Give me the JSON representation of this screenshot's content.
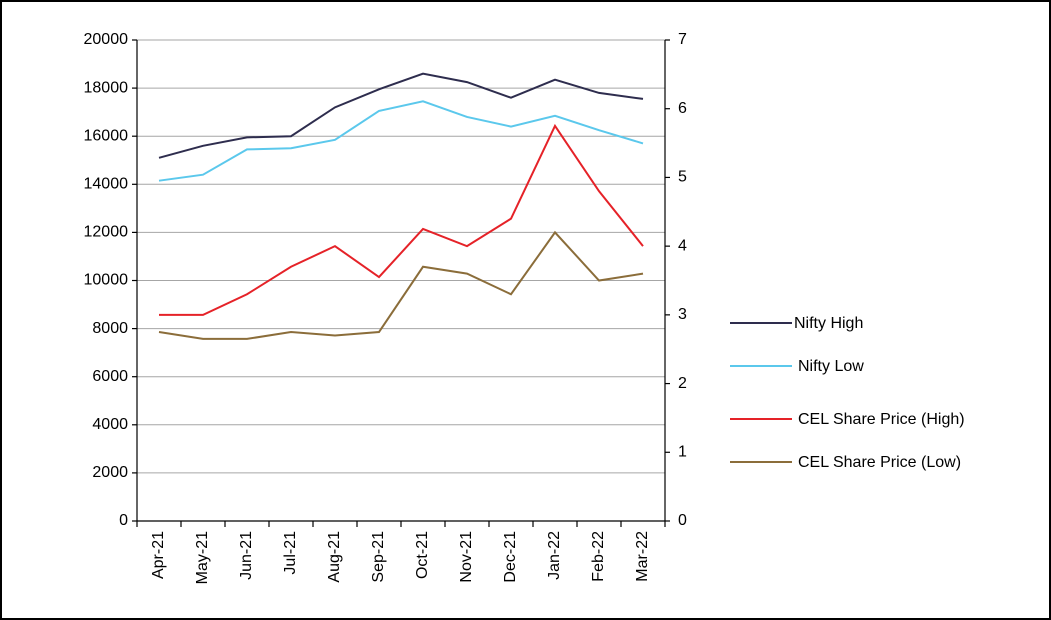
{
  "chart_data": {
    "type": "line",
    "categories": [
      "Apr-21",
      "May-21",
      "Jun-21",
      "Jul-21",
      "Aug-21",
      "Sep-21",
      "Oct-21",
      "Nov-21",
      "Dec-21",
      "Jan-22",
      "Feb-22",
      "Mar-22"
    ],
    "series": [
      {
        "name": "Nifty High",
        "color": "#2e2d4e",
        "values": [
          15100,
          15600,
          15950,
          16000,
          17200,
          17950,
          18600,
          18250,
          17600,
          18350,
          17800,
          17550
        ]
      },
      {
        "name": "Nifty Low",
        "color": "#5bc8ec",
        "values": [
          14150,
          14400,
          15450,
          15500,
          15850,
          17050,
          17450,
          16800,
          16400,
          16850,
          16250,
          15700
        ]
      },
      {
        "name": "CEL Share Price (High)",
        "color": "#e52228",
        "axis": "y2",
        "values": [
          3.0,
          3.0,
          3.3,
          3.7,
          4.0,
          3.55,
          4.25,
          4.0,
          4.4,
          5.75,
          4.8,
          4.0
        ]
      },
      {
        "name": "CEL Share Price (Low)",
        "color": "#8b6d3a",
        "axis": "y2",
        "values": [
          2.75,
          2.65,
          2.65,
          2.75,
          2.7,
          2.75,
          3.7,
          3.6,
          3.3,
          4.2,
          3.5,
          3.6
        ]
      }
    ],
    "ylim": [
      0,
      20000
    ],
    "yticks": [
      0,
      2000,
      4000,
      6000,
      8000,
      10000,
      12000,
      14000,
      16000,
      18000,
      20000
    ],
    "y2lim": [
      0,
      7
    ],
    "y2ticks": [
      0,
      1,
      2,
      3,
      4,
      5,
      6,
      7
    ],
    "grid": true,
    "legend": "right"
  }
}
